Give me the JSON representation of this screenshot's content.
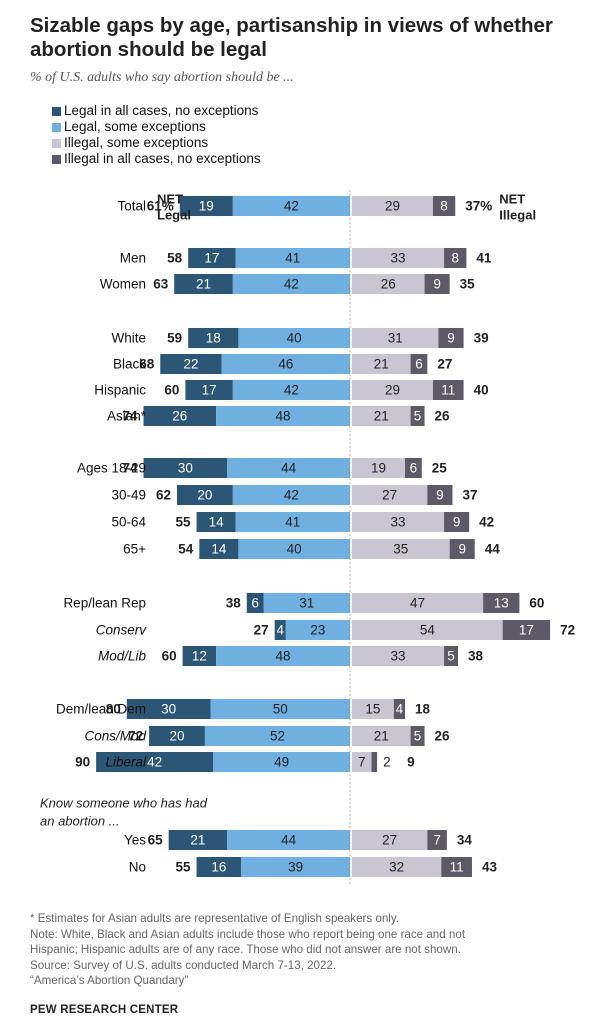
{
  "title": "Sizable gaps by age, partisanship in views of whether abortion should be legal",
  "subtitle": "% of U.S. adults who say abortion should be ...",
  "legend": [
    {
      "label": "Legal in all cases, no exceptions",
      "color": "#2b5675"
    },
    {
      "label": "Legal, some exceptions",
      "color": "#6fb0e0"
    },
    {
      "label": "Illegal, some exceptions",
      "color": "#c9c6d2"
    },
    {
      "label": "Illegal in all cases, no exceptions",
      "color": "#5e5966"
    }
  ],
  "net_legal_header": [
    "NET",
    "Legal"
  ],
  "net_illegal_header": [
    "NET",
    "Illegal"
  ],
  "group_header": [
    "Know someone who has had",
    "an abortion ..."
  ],
  "chart_data": {
    "type": "bar",
    "orientation": "horizontal-diverging",
    "series": [
      {
        "name": "Legal in all cases, no exceptions",
        "color": "#2b5675"
      },
      {
        "name": "Legal, some exceptions",
        "color": "#6fb0e0"
      },
      {
        "name": "Illegal, some exceptions",
        "color": "#c9c6d2"
      },
      {
        "name": "Illegal in all cases, no exceptions",
        "color": "#5e5966"
      }
    ],
    "rows": [
      {
        "label": "Total",
        "italic": false,
        "legal_all": "19",
        "legal_some": "42",
        "illegal_some": "29",
        "illegal_all": "8",
        "net_legal": "61%",
        "net_illegal": "37%"
      },
      {
        "label": "Men",
        "italic": false,
        "legal_all": "17",
        "legal_some": "41",
        "illegal_some": "33",
        "illegal_all": "8",
        "net_legal": "58",
        "net_illegal": "41"
      },
      {
        "label": "Women",
        "italic": false,
        "legal_all": "21",
        "legal_some": "42",
        "illegal_some": "26",
        "illegal_all": "9",
        "net_legal": "63",
        "net_illegal": "35"
      },
      {
        "label": "White",
        "italic": false,
        "legal_all": "18",
        "legal_some": "40",
        "illegal_some": "31",
        "illegal_all": "9",
        "net_legal": "59",
        "net_illegal": "39"
      },
      {
        "label": "Black",
        "italic": false,
        "legal_all": "22",
        "legal_some": "46",
        "illegal_some": "21",
        "illegal_all": "6",
        "net_legal": "68",
        "net_illegal": "27"
      },
      {
        "label": "Hispanic",
        "italic": false,
        "legal_all": "17",
        "legal_some": "42",
        "illegal_some": "29",
        "illegal_all": "11",
        "net_legal": "60",
        "net_illegal": "40"
      },
      {
        "label": "Asian*",
        "italic": false,
        "legal_all": "26",
        "legal_some": "48",
        "illegal_some": "21",
        "illegal_all": "5",
        "net_legal": "74",
        "net_illegal": "26"
      },
      {
        "label": "Ages 18-29",
        "italic": false,
        "legal_all": "30",
        "legal_some": "44",
        "illegal_some": "19",
        "illegal_all": "6",
        "net_legal": "74",
        "net_illegal": "25"
      },
      {
        "label": "30-49",
        "italic": false,
        "legal_all": "20",
        "legal_some": "42",
        "illegal_some": "27",
        "illegal_all": "9",
        "net_legal": "62",
        "net_illegal": "37"
      },
      {
        "label": "50-64",
        "italic": false,
        "legal_all": "14",
        "legal_some": "41",
        "illegal_some": "33",
        "illegal_all": "9",
        "net_legal": "55",
        "net_illegal": "42"
      },
      {
        "label": "65+",
        "italic": false,
        "legal_all": "14",
        "legal_some": "40",
        "illegal_some": "35",
        "illegal_all": "9",
        "net_legal": "54",
        "net_illegal": "44"
      },
      {
        "label": "Rep/lean Rep",
        "italic": false,
        "legal_all": "6",
        "legal_some": "31",
        "illegal_some": "47",
        "illegal_all": "13",
        "net_legal": "38",
        "net_illegal": "60"
      },
      {
        "label": "Conserv",
        "italic": true,
        "legal_all": "4",
        "legal_some": "23",
        "illegal_some": "54",
        "illegal_all": "17",
        "net_legal": "27",
        "net_illegal": "72"
      },
      {
        "label": "Mod/Lib",
        "italic": true,
        "legal_all": "12",
        "legal_some": "48",
        "illegal_some": "33",
        "illegal_all": "5",
        "net_legal": "60",
        "net_illegal": "38"
      },
      {
        "label": "Dem/lean Dem",
        "italic": false,
        "legal_all": "30",
        "legal_some": "50",
        "illegal_some": "15",
        "illegal_all": "4",
        "net_legal": "80",
        "net_illegal": "18"
      },
      {
        "label": "Cons/Mod",
        "italic": true,
        "legal_all": "20",
        "legal_some": "52",
        "illegal_some": "21",
        "illegal_all": "5",
        "net_legal": "72",
        "net_illegal": "26"
      },
      {
        "label": "Liberal",
        "italic": true,
        "legal_all": "42",
        "legal_some": "49",
        "illegal_some": "7",
        "illegal_all": "2",
        "net_legal": "90",
        "net_illegal": "9"
      },
      {
        "label": "Yes",
        "italic": false,
        "legal_all": "21",
        "legal_some": "44",
        "illegal_some": "27",
        "illegal_all": "7",
        "net_legal": "65",
        "net_illegal": "34"
      },
      {
        "label": "No",
        "italic": false,
        "legal_all": "16",
        "legal_some": "39",
        "illegal_some": "32",
        "illegal_all": "11",
        "net_legal": "55",
        "net_illegal": "43"
      }
    ]
  },
  "footnotes": [
    "* Estimates for Asian adults are representative of English speakers only.",
    "Note: White, Black and Asian adults include those who report being one race and not",
    "Hispanic; Hispanic adults are of any race. Those who did not answer are not shown.",
    "Source: Survey of U.S. adults conducted March 7-13, 2022.",
    "“America’s Abortion Quandary”"
  ],
  "source_org": "PEW RESEARCH CENTER"
}
